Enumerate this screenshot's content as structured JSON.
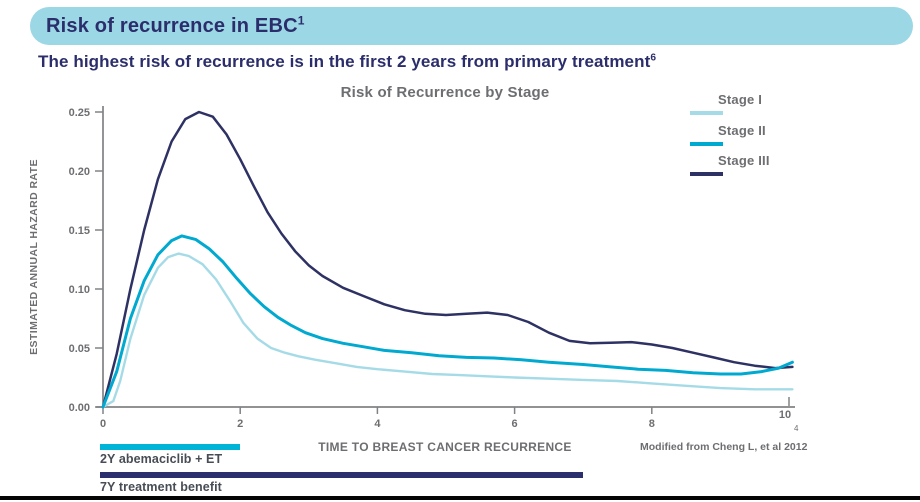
{
  "header": {
    "title": "Risk of recurrence in EBC",
    "title_sup": "1"
  },
  "subtitle": {
    "text": "The highest risk of recurrence is in the first 2 years from primary treatment",
    "sup": "6"
  },
  "chart_data": {
    "type": "line",
    "title": "Risk of Recurrence by Stage",
    "xlabel": "TIME TO BREAST CANCER RECURRENCE",
    "ylabel": "ESTIMATED ANNUAL HAZARD RATE",
    "xlim": [
      0,
      10
    ],
    "ylim": [
      0,
      0.25
    ],
    "xticks": [
      0,
      2,
      4,
      6,
      8,
      10
    ],
    "yticks": [
      0,
      0.05,
      0.1,
      0.15,
      0.2,
      0.25
    ],
    "grid": false,
    "legend_position": "top-right",
    "source_note": "Modified from Cheng L, et al 2012",
    "footnote_mark": "4",
    "axis_color": "#808285",
    "text_color": "#6d6e71",
    "series": [
      {
        "name": "Stage I",
        "color": "#a5dbe7",
        "stroke_width": 2.4,
        "x": [
          0,
          0.15,
          0.25,
          0.4,
          0.6,
          0.8,
          0.95,
          1.1,
          1.25,
          1.45,
          1.65,
          1.85,
          2.05,
          2.25,
          2.45,
          2.65,
          2.85,
          3.1,
          3.4,
          3.7,
          4.0,
          4.4,
          4.8,
          5.2,
          5.6,
          6.0,
          6.5,
          7.0,
          7.5,
          8.0,
          8.5,
          9.0,
          9.5,
          10.05
        ],
        "y": [
          0,
          0.005,
          0.022,
          0.058,
          0.095,
          0.118,
          0.127,
          0.13,
          0.128,
          0.121,
          0.108,
          0.09,
          0.071,
          0.058,
          0.05,
          0.046,
          0.043,
          0.04,
          0.037,
          0.034,
          0.032,
          0.03,
          0.028,
          0.027,
          0.026,
          0.025,
          0.024,
          0.023,
          0.022,
          0.02,
          0.018,
          0.016,
          0.015,
          0.015
        ]
      },
      {
        "name": "Stage II",
        "color": "#00a9cf",
        "stroke_width": 3,
        "x": [
          0,
          0.2,
          0.4,
          0.6,
          0.8,
          1.0,
          1.15,
          1.35,
          1.55,
          1.75,
          1.95,
          2.15,
          2.35,
          2.55,
          2.75,
          2.95,
          3.2,
          3.5,
          3.8,
          4.1,
          4.5,
          4.9,
          5.3,
          5.7,
          6.1,
          6.5,
          7.0,
          7.4,
          7.8,
          8.2,
          8.6,
          9.0,
          9.3,
          9.6,
          9.85,
          10.05
        ],
        "y": [
          0,
          0.03,
          0.075,
          0.107,
          0.129,
          0.141,
          0.145,
          0.142,
          0.134,
          0.123,
          0.109,
          0.096,
          0.085,
          0.076,
          0.069,
          0.063,
          0.058,
          0.054,
          0.051,
          0.048,
          0.046,
          0.0435,
          0.042,
          0.0415,
          0.04,
          0.038,
          0.036,
          0.034,
          0.032,
          0.031,
          0.029,
          0.028,
          0.028,
          0.03,
          0.033,
          0.038
        ]
      },
      {
        "name": "Stage III",
        "color": "#2e3163",
        "stroke_width": 2.5,
        "x": [
          0,
          0.2,
          0.4,
          0.6,
          0.8,
          1.0,
          1.2,
          1.4,
          1.6,
          1.8,
          2.0,
          2.2,
          2.4,
          2.6,
          2.8,
          3.0,
          3.2,
          3.5,
          3.8,
          4.1,
          4.4,
          4.7,
          5.0,
          5.3,
          5.6,
          5.9,
          6.2,
          6.5,
          6.8,
          7.1,
          7.4,
          7.7,
          8.0,
          8.3,
          8.6,
          8.9,
          9.2,
          9.5,
          9.8,
          10.05
        ],
        "y": [
          0,
          0.045,
          0.1,
          0.15,
          0.193,
          0.225,
          0.244,
          0.25,
          0.246,
          0.231,
          0.21,
          0.187,
          0.165,
          0.147,
          0.132,
          0.12,
          0.111,
          0.101,
          0.094,
          0.087,
          0.082,
          0.079,
          0.078,
          0.079,
          0.08,
          0.078,
          0.072,
          0.063,
          0.056,
          0.054,
          0.0545,
          0.055,
          0.053,
          0.05,
          0.046,
          0.042,
          0.038,
          0.035,
          0.033,
          0.034
        ]
      }
    ]
  },
  "timeline_bars": [
    {
      "label": "2Y abemaciclib + ET",
      "color": "#00b4d8",
      "x_start": 0,
      "x_end": 2
    },
    {
      "label": "7Y treatment benefit",
      "color": "#2b2f6d",
      "x_start": 0,
      "x_end": 7
    }
  ]
}
